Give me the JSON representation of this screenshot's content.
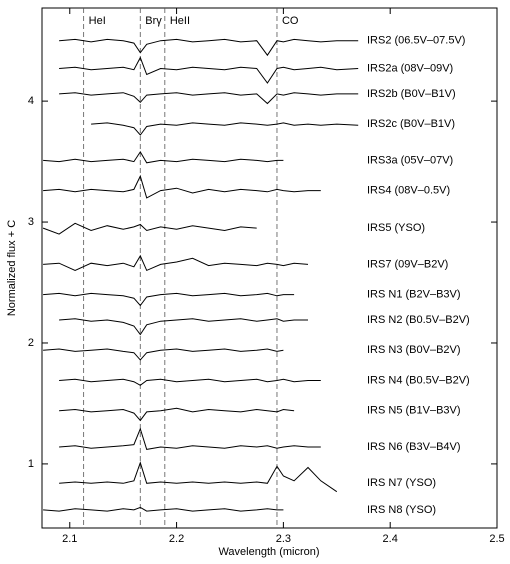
{
  "chart_data": {
    "type": "line",
    "xlabel": "Wavelength (micron)",
    "ylabel": "Normalized flux + C",
    "xlim": [
      2.074,
      2.5
    ],
    "ylim": [
      0.47,
      4.77
    ],
    "xticks": [
      2.1,
      2.2,
      2.3,
      2.4,
      2.5
    ],
    "yticks": [
      1,
      2,
      3,
      4
    ],
    "color": "#000000",
    "annotations": [
      {
        "text": "HeI",
        "x": 2.113
      },
      {
        "text": "Brγ",
        "x": 2.166
      },
      {
        "text": "HeII",
        "x": 2.189
      },
      {
        "text": "CO",
        "x": 2.294
      }
    ],
    "x": [
      2.075,
      2.09,
      2.105,
      2.12,
      2.135,
      2.15,
      2.16,
      2.166,
      2.172,
      2.185,
      2.2,
      2.215,
      2.23,
      2.245,
      2.26,
      2.275,
      2.285,
      2.294,
      2.3,
      2.31,
      2.323,
      2.335,
      2.35,
      2.37
    ],
    "series": [
      {
        "name": "IRS2 (06.5V–07.5V)",
        "values": [
          null,
          4.5,
          4.51,
          4.49,
          4.51,
          4.5,
          4.48,
          4.4,
          4.47,
          4.5,
          4.51,
          4.49,
          4.5,
          4.51,
          4.49,
          4.5,
          4.38,
          4.5,
          4.49,
          4.51,
          4.5,
          4.49,
          4.5,
          4.5
        ]
      },
      {
        "name": "IRS2a (08V–09V)",
        "values": [
          null,
          4.27,
          4.28,
          4.26,
          4.27,
          4.28,
          4.26,
          4.36,
          4.22,
          4.27,
          4.26,
          4.28,
          4.27,
          4.26,
          4.28,
          4.27,
          4.15,
          4.27,
          4.28,
          4.26,
          4.27,
          4.28,
          4.26,
          4.27
        ]
      },
      {
        "name": "IRS2b (B0V–B1V)",
        "values": [
          null,
          4.06,
          4.07,
          4.05,
          4.06,
          4.07,
          4.04,
          3.99,
          4.05,
          4.06,
          4.07,
          4.05,
          4.06,
          4.07,
          4.05,
          4.06,
          3.98,
          4.06,
          4.05,
          4.07,
          4.06,
          4.05,
          4.06,
          4.06
        ]
      },
      {
        "name": "IRS2c (B0V–B1V)",
        "values": [
          null,
          null,
          null,
          3.81,
          3.82,
          3.8,
          3.78,
          3.72,
          3.79,
          3.81,
          3.8,
          3.82,
          3.81,
          3.8,
          3.82,
          3.81,
          3.8,
          3.81,
          3.82,
          3.8,
          3.81,
          3.8,
          3.81,
          3.8
        ]
      },
      {
        "name": "IRS3a (05V–07V)",
        "values": [
          3.51,
          3.5,
          3.52,
          3.5,
          3.51,
          3.52,
          3.5,
          3.58,
          3.49,
          3.51,
          3.5,
          3.52,
          3.51,
          3.5,
          3.52,
          3.51,
          3.5,
          3.51,
          3.51,
          null,
          null,
          null,
          null,
          null
        ]
      },
      {
        "name": "IRS4 (08V–0.5V)",
        "values": [
          3.26,
          3.27,
          3.25,
          3.27,
          3.26,
          3.25,
          3.27,
          3.38,
          3.2,
          3.26,
          3.28,
          3.24,
          3.27,
          3.25,
          3.27,
          3.26,
          3.25,
          3.27,
          3.26,
          3.25,
          3.26,
          3.26,
          null,
          null
        ]
      },
      {
        "name": "IRS5 (YSO)",
        "values": [
          2.95,
          2.9,
          2.99,
          2.93,
          2.97,
          2.94,
          2.96,
          2.98,
          2.93,
          2.96,
          2.94,
          2.97,
          2.95,
          2.93,
          2.96,
          2.95,
          null,
          null,
          null,
          null,
          null,
          null,
          null,
          null
        ]
      },
      {
        "name": "IRS7 (09V–B2V)",
        "values": [
          2.65,
          2.66,
          2.6,
          2.66,
          2.64,
          2.66,
          2.63,
          2.72,
          2.6,
          2.65,
          2.67,
          2.7,
          2.64,
          2.66,
          2.65,
          2.64,
          2.66,
          2.65,
          2.64,
          2.66,
          2.65,
          null,
          null,
          null
        ]
      },
      {
        "name": "IRS N1 (B2V–B3V)",
        "values": [
          2.4,
          2.41,
          2.39,
          2.41,
          2.4,
          2.39,
          2.37,
          2.31,
          2.38,
          2.4,
          2.41,
          2.39,
          2.4,
          2.41,
          2.39,
          2.4,
          2.41,
          2.39,
          2.4,
          2.4,
          null,
          null,
          null,
          null
        ]
      },
      {
        "name": "IRS N2 (B0.5V–B2V)",
        "values": [
          null,
          2.19,
          2.2,
          2.18,
          2.19,
          2.17,
          2.14,
          2.07,
          2.15,
          2.18,
          2.19,
          2.2,
          2.18,
          2.19,
          2.2,
          2.18,
          2.19,
          2.2,
          2.18,
          2.19,
          2.19,
          null,
          null,
          null
        ]
      },
      {
        "name": "IRS N3 (B0V–B2V)",
        "values": [
          1.94,
          1.95,
          1.93,
          1.94,
          1.95,
          1.93,
          1.92,
          1.86,
          1.92,
          1.94,
          1.95,
          1.93,
          1.94,
          1.95,
          1.93,
          1.94,
          1.95,
          1.93,
          1.94,
          null,
          null,
          null,
          null,
          null
        ]
      },
      {
        "name": "IRS N4 (B0.5V–B2V)",
        "values": [
          null,
          1.69,
          1.7,
          1.68,
          1.69,
          1.7,
          1.68,
          1.65,
          1.69,
          1.7,
          1.68,
          1.69,
          1.7,
          1.68,
          1.69,
          1.7,
          1.68,
          1.69,
          1.7,
          1.68,
          1.69,
          1.69,
          null,
          null
        ]
      },
      {
        "name": "IRS N5 (B1V–B3V)",
        "values": [
          null,
          1.44,
          1.45,
          1.43,
          1.44,
          1.45,
          1.42,
          1.36,
          1.43,
          1.44,
          1.46,
          1.43,
          1.45,
          1.44,
          1.43,
          1.45,
          1.44,
          1.43,
          1.45,
          1.44,
          null,
          null,
          null,
          null
        ]
      },
      {
        "name": "IRS N6 (B3V–B4V)",
        "values": [
          null,
          1.14,
          1.15,
          1.13,
          1.14,
          1.15,
          1.16,
          1.29,
          1.12,
          1.14,
          1.13,
          1.15,
          1.14,
          1.13,
          1.15,
          1.14,
          1.15,
          1.13,
          1.14,
          1.15,
          1.14,
          1.14,
          null,
          null
        ]
      },
      {
        "name": "IRS N7 (YSO)",
        "values": [
          null,
          0.84,
          0.85,
          0.84,
          0.85,
          0.84,
          0.86,
          1.01,
          0.84,
          0.85,
          0.84,
          0.85,
          0.84,
          0.85,
          0.84,
          0.85,
          0.84,
          0.98,
          0.9,
          0.86,
          0.97,
          0.86,
          0.77,
          null
        ]
      },
      {
        "name": "IRS N8 (YSO)",
        "values": [
          0.62,
          0.61,
          0.63,
          0.62,
          0.61,
          0.63,
          0.62,
          0.64,
          0.61,
          0.62,
          0.63,
          0.61,
          0.62,
          0.63,
          0.61,
          0.62,
          0.63,
          0.62,
          0.62,
          null,
          null,
          null,
          null,
          null
        ]
      }
    ]
  }
}
